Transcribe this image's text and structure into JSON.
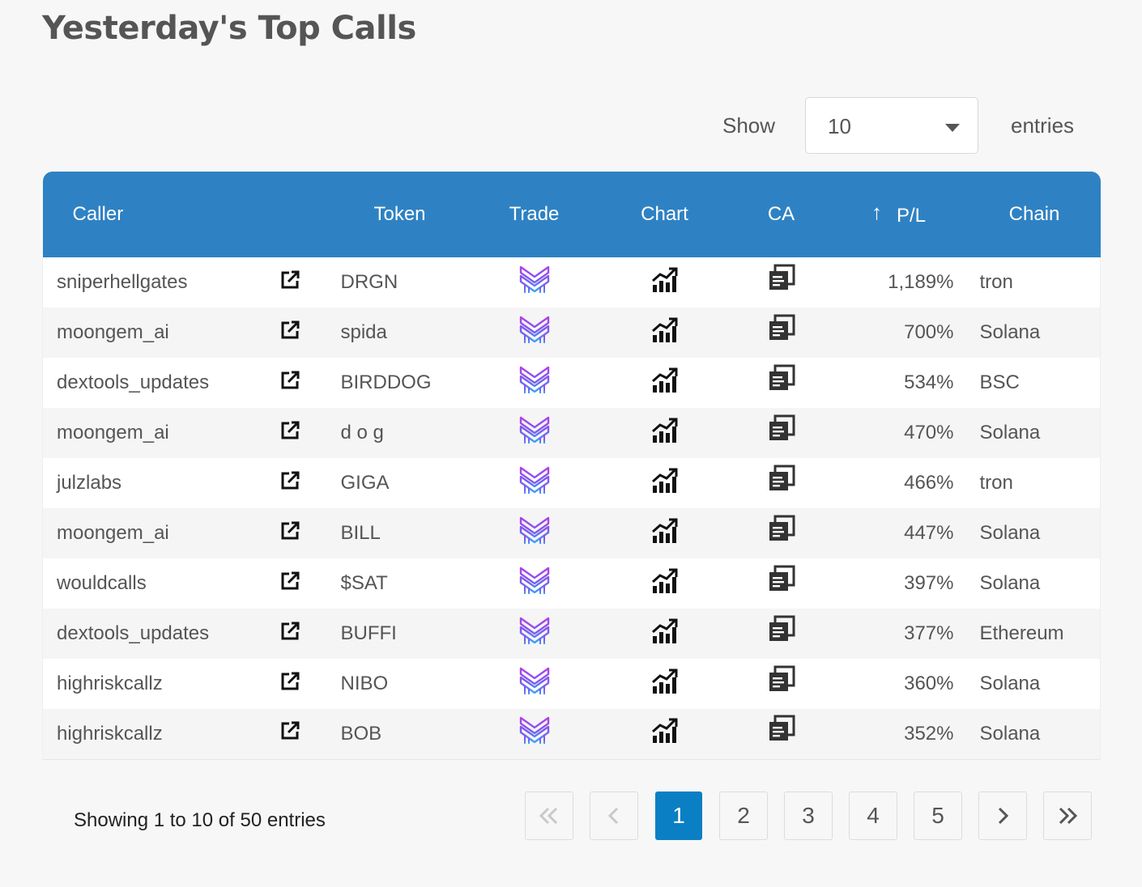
{
  "title": "Yesterday's Top Calls",
  "length_menu": {
    "show_label": "Show",
    "value": "10",
    "entries_label": "entries"
  },
  "columns": {
    "caller": "Caller",
    "token": "Token",
    "trade": "Trade",
    "chart": "Chart",
    "ca": "CA",
    "pl": "P/L",
    "chain": "Chain"
  },
  "sort_icon": "arrow-up-icon",
  "rows": [
    {
      "caller": "sniperhellgates",
      "token": "DRGN",
      "pl": "1,189%",
      "chain": "tron"
    },
    {
      "caller": "moongem_ai",
      "token": "spida",
      "pl": "700%",
      "chain": "Solana"
    },
    {
      "caller": "dextools_updates",
      "token": "BIRDDOG",
      "pl": "534%",
      "chain": "BSC"
    },
    {
      "caller": "moongem_ai",
      "token": "d o g",
      "pl": "470%",
      "chain": "Solana"
    },
    {
      "caller": "julzlabs",
      "token": "GIGA",
      "pl": "466%",
      "chain": "tron"
    },
    {
      "caller": "moongem_ai",
      "token": "BILL",
      "pl": "447%",
      "chain": "Solana"
    },
    {
      "caller": "wouldcalls",
      "token": "$SAT",
      "pl": "397%",
      "chain": "Solana"
    },
    {
      "caller": "dextools_updates",
      "token": "BUFFI",
      "pl": "377%",
      "chain": "Ethereum"
    },
    {
      "caller": "highriskcallz",
      "token": "NIBO",
      "pl": "360%",
      "chain": "Solana"
    },
    {
      "caller": "highriskcallz",
      "token": "BOB",
      "pl": "352%",
      "chain": "Solana"
    }
  ],
  "row_icons": {
    "link": "external-link-icon",
    "trade": "trade-logo-icon",
    "chart": "chart-growth-icon",
    "ca": "copy-icon"
  },
  "info": "Showing 1 to 10 of 50 entries",
  "pagination": {
    "pages": [
      "1",
      "2",
      "3",
      "4",
      "5"
    ],
    "active": "1",
    "icons": [
      "first-page-icon",
      "previous-page-icon",
      "next-page-icon",
      "last-page-icon"
    ]
  },
  "colors": {
    "header_bg": "#2e82c3",
    "active_page": "#0a7fc4",
    "page_bg": "#f7f7f7"
  }
}
